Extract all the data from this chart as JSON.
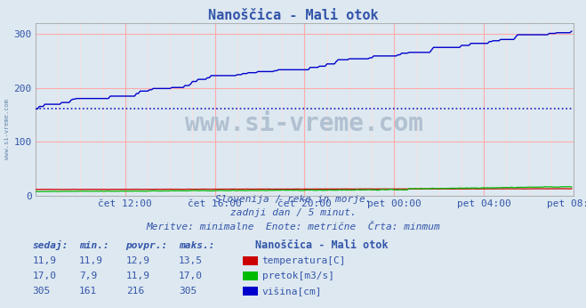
{
  "title": "Nanoščica - Mali otok",
  "background_color": "#dde8f0",
  "plot_bg_color": "#dde8f0",
  "grid_color_major": "#ffaaaa",
  "grid_color_minor": "#ffdddd",
  "ylim": [
    0,
    320
  ],
  "yticks": [
    0,
    100,
    200,
    300
  ],
  "xticklabels": [
    "čet 12:00",
    "čet 16:00",
    "čet 20:00",
    "pet 00:00",
    "pet 04:00",
    "pet 08:00"
  ],
  "xtick_positions": [
    48,
    96,
    144,
    192,
    240,
    288
  ],
  "temp_color": "#cc0000",
  "pretok_color": "#00bb00",
  "visina_color": "#0000cc",
  "avg_line_color": "#0000bb",
  "avg_line_value": 161,
  "footnote1": "Slovenija / reke in morje.",
  "footnote2": "zadnji dan / 5 minut.",
  "footnote3": "Meritve: minimalne  Enote: metrične  Črta: minmum",
  "legend_title": "Nanoščica - Mali otok",
  "legend_items": [
    "temperatura[C]",
    "pretok[m3/s]",
    "višina[cm]"
  ],
  "legend_colors": [
    "#cc0000",
    "#00bb00",
    "#0000cc"
  ],
  "table_headers": [
    "sedaj:",
    "min.:",
    "povpr.:",
    "maks.:"
  ],
  "table_rows": [
    [
      "11,9",
      "11,9",
      "12,9",
      "13,5"
    ],
    [
      "17,0",
      "7,9",
      "11,9",
      "17,0"
    ],
    [
      "305",
      "161",
      "216",
      "305"
    ]
  ],
  "watermark": "www.si-vreme.com",
  "watermark_color": "#aabbcc",
  "label_color": "#3355aa",
  "n_points": 288
}
